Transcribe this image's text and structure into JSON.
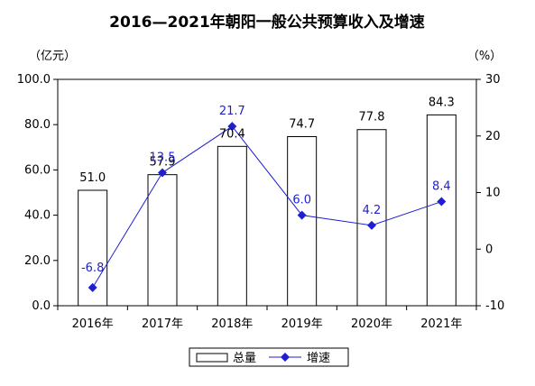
{
  "chart_data": {
    "type": "bar",
    "title": "2016—2021年朝阳一般公共预算收入及增速",
    "y_left_unit": "（亿元）",
    "y_right_unit": "（%）",
    "categories": [
      "2016年",
      "2017年",
      "2018年",
      "2019年",
      "2020年",
      "2021年"
    ],
    "series": [
      {
        "name": "总量",
        "type": "bar",
        "axis": "left",
        "values": [
          51.0,
          57.9,
          70.4,
          74.7,
          77.8,
          84.3
        ],
        "labels": [
          "51.0",
          "57.9",
          "70.4",
          "74.7",
          "77.8",
          "84.3"
        ],
        "color": "#ffffff",
        "stroke": "#000000"
      },
      {
        "name": "增速",
        "type": "line",
        "axis": "right",
        "values": [
          -6.8,
          13.5,
          21.7,
          6.0,
          4.2,
          8.4
        ],
        "labels": [
          "-6.8",
          "13.5",
          "21.7",
          "6.0",
          "4.2",
          "8.4"
        ],
        "color": "#1f1fd0"
      }
    ],
    "y_left": {
      "min": 0,
      "max": 100,
      "ticks": [
        "0.0",
        "20.0",
        "40.0",
        "60.0",
        "80.0",
        "100.0"
      ]
    },
    "y_right": {
      "min": -10,
      "max": 30,
      "ticks": [
        "-10",
        "0",
        "10",
        "20",
        "30"
      ]
    },
    "grid": false,
    "legend": "bottom"
  }
}
